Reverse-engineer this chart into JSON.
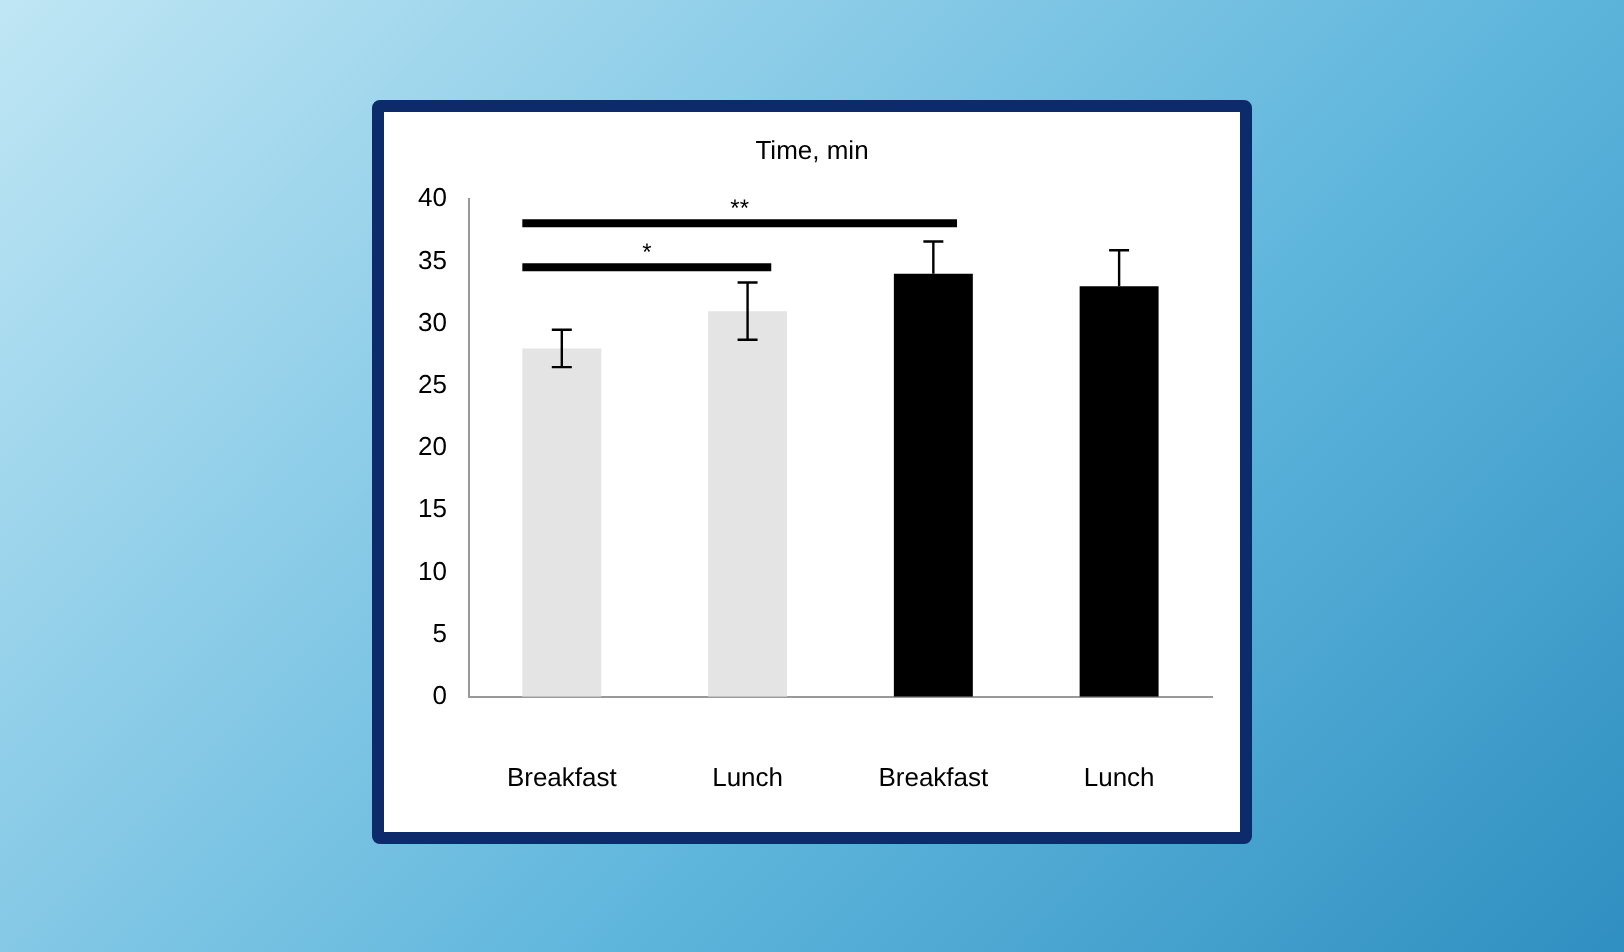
{
  "chart_data": {
    "type": "bar",
    "title": "Time, min",
    "categories": [
      "Breakfast",
      "Lunch",
      "Breakfast",
      "Lunch"
    ],
    "values": [
      28,
      31,
      34,
      33
    ],
    "colors": [
      "#e4e4e4",
      "#e4e4e4",
      "#000000",
      "#000000"
    ],
    "errors": [
      1.5,
      2.3,
      2.6,
      2.9
    ],
    "ylim": [
      0,
      40
    ],
    "yticks": [
      0,
      5,
      10,
      15,
      20,
      25,
      30,
      35,
      40
    ],
    "grid": false,
    "annotations": [
      "*",
      "**"
    ]
  }
}
